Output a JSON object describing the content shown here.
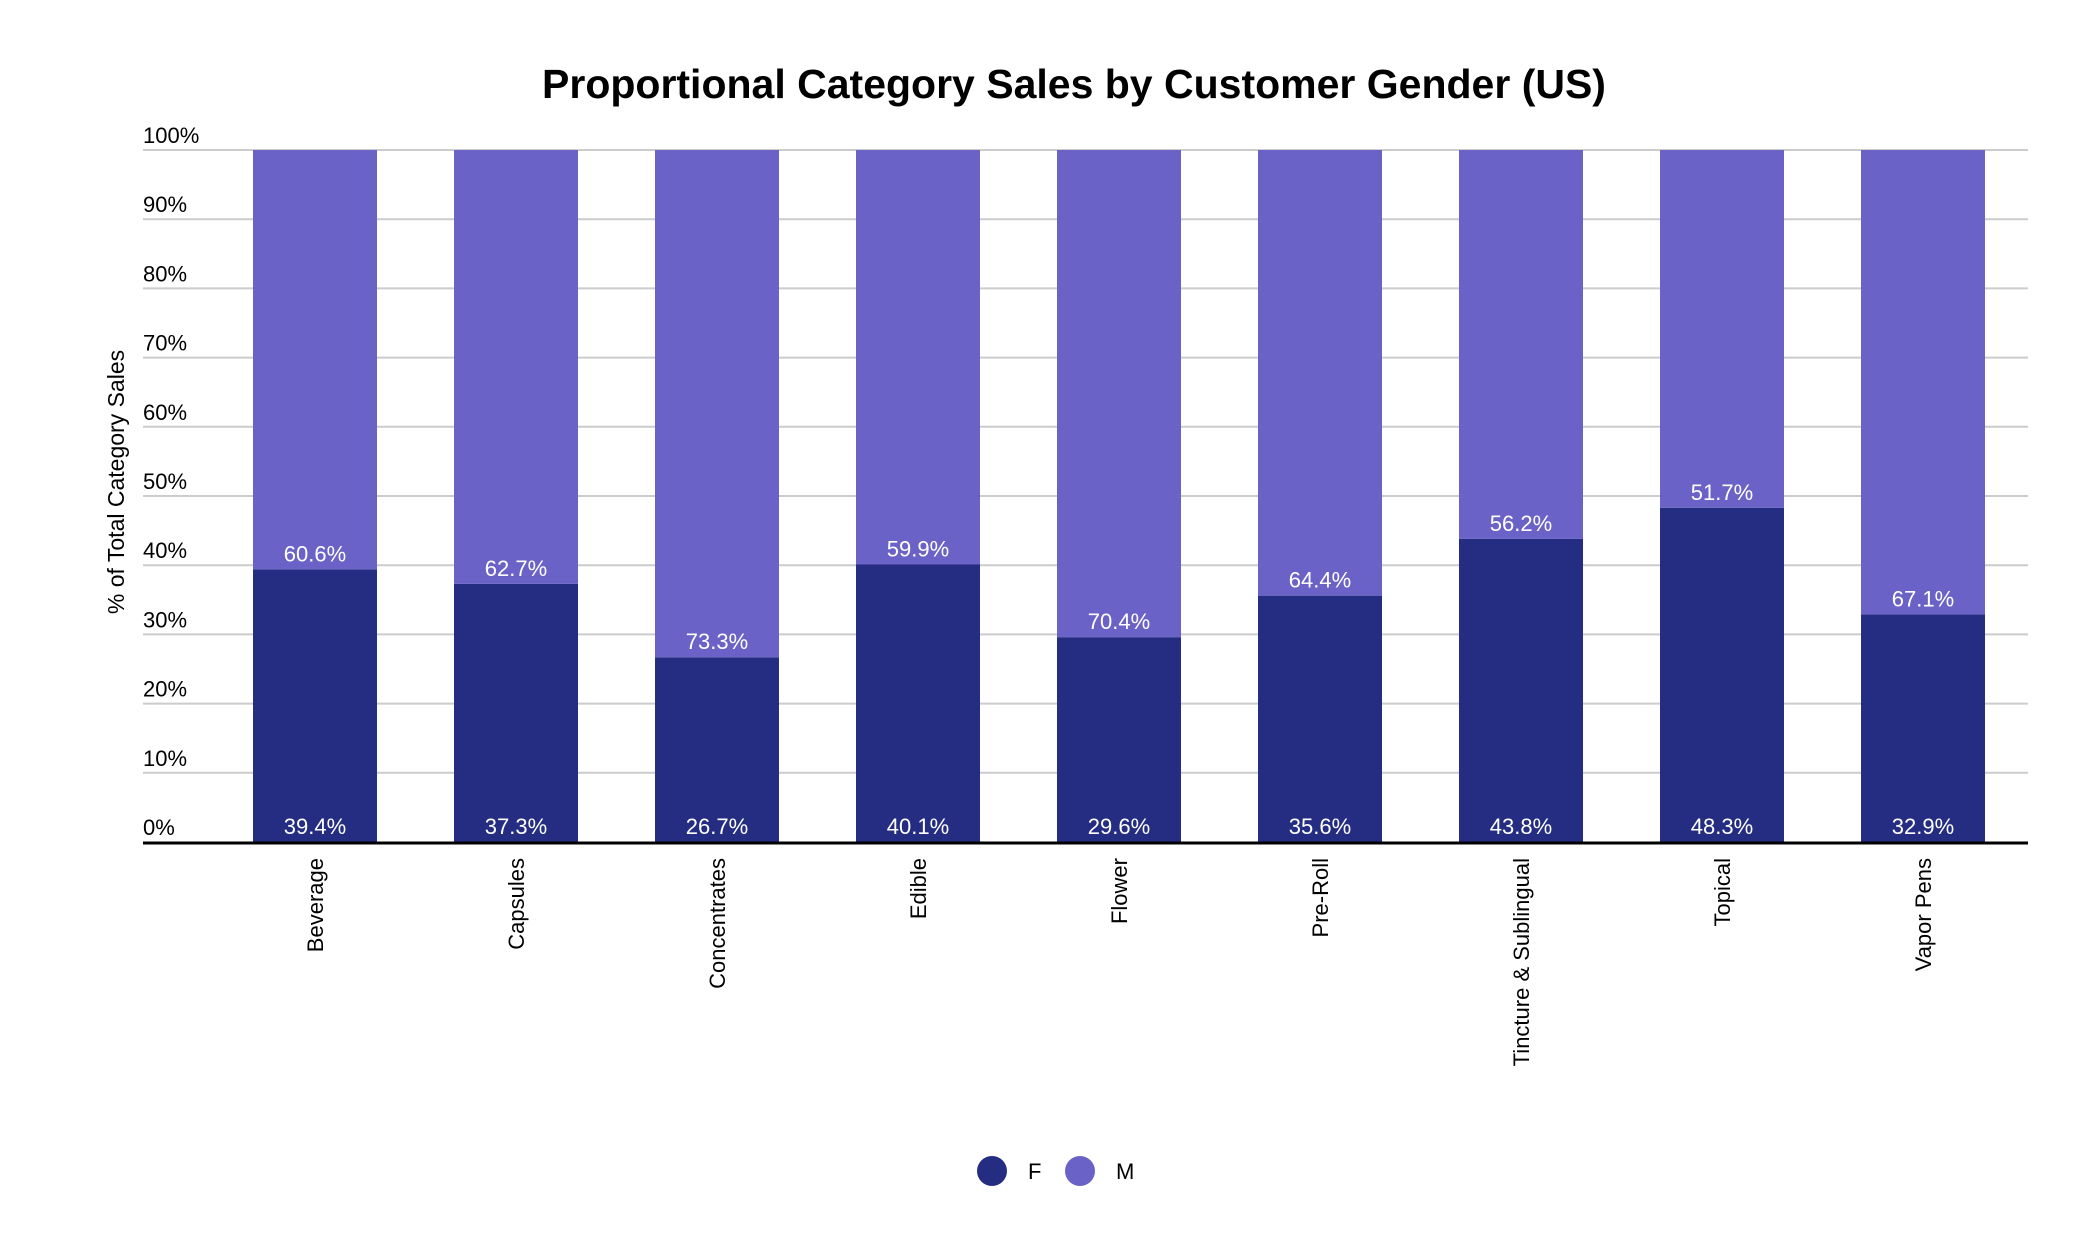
{
  "chart_data": {
    "type": "bar",
    "stacked": true,
    "title": "Proportional Category Sales by Customer Gender (US)",
    "xlabel": "",
    "ylabel": "% of Total Category Sales",
    "ylim": [
      0,
      100
    ],
    "yticks": [
      "0%",
      "10%",
      "20%",
      "30%",
      "40%",
      "50%",
      "60%",
      "70%",
      "80%",
      "90%",
      "100%"
    ],
    "grid": true,
    "legend_position": "bottom",
    "categories": [
      "Beverage",
      "Capsules",
      "Concentrates",
      "Edible",
      "Flower",
      "Pre-Roll",
      "Tincture & Sublingual",
      "Topical",
      "Vapor Pens"
    ],
    "series": [
      {
        "name": "F",
        "color": "#242D82",
        "values": [
          39.4,
          37.3,
          26.7,
          40.1,
          29.6,
          35.6,
          43.8,
          48.3,
          32.9
        ],
        "labels": [
          "39.4%",
          "37.3%",
          "26.7%",
          "40.1%",
          "29.6%",
          "35.6%",
          "43.8%",
          "48.3%",
          "32.9%"
        ]
      },
      {
        "name": "M",
        "color": "#6A62C6",
        "values": [
          60.6,
          62.7,
          73.3,
          59.9,
          70.4,
          64.4,
          56.2,
          51.7,
          67.1
        ],
        "labels": [
          "60.6%",
          "62.7%",
          "73.3%",
          "59.9%",
          "70.4%",
          "64.4%",
          "56.2%",
          "51.7%",
          "67.1%"
        ]
      }
    ]
  }
}
